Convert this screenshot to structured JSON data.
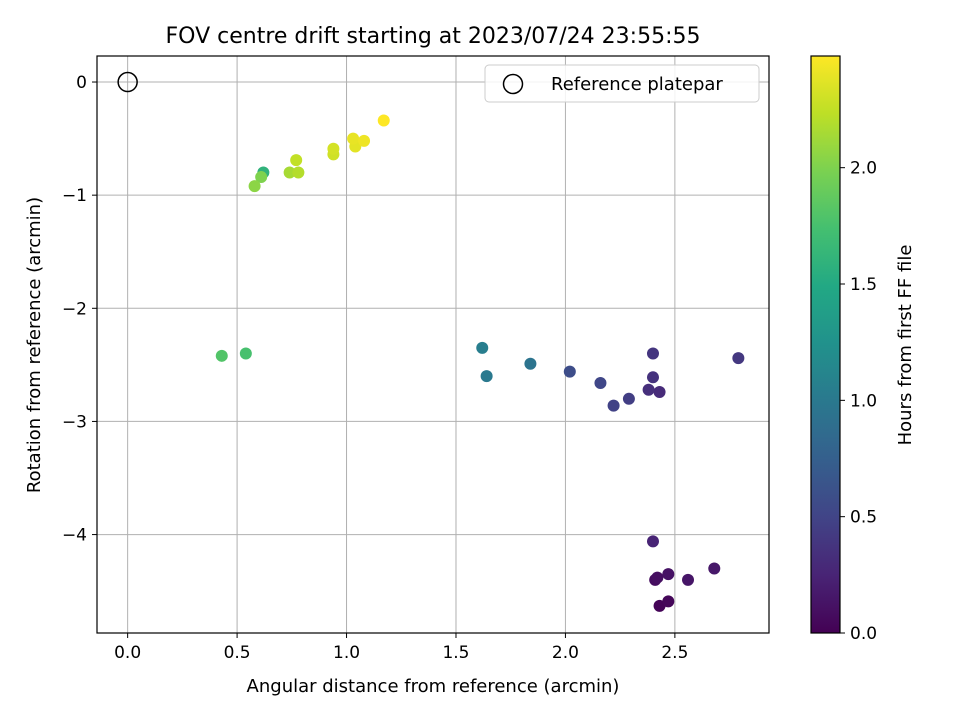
{
  "chart_data": {
    "type": "scatter",
    "title": "FOV centre drift starting at 2023/07/24 23:55:55",
    "xlabel": "Angular distance from reference (arcmin)",
    "ylabel": "Rotation from reference (arcmin)",
    "xlim": [
      -0.14,
      2.93
    ],
    "ylim": [
      -4.87,
      0.23
    ],
    "xticks": [
      0.0,
      0.5,
      1.0,
      1.5,
      2.0,
      2.5
    ],
    "xtick_labels": [
      "0.0",
      "0.5",
      "1.0",
      "1.5",
      "2.0",
      "2.5"
    ],
    "yticks": [
      0,
      -1,
      -2,
      -3,
      -4
    ],
    "ytick_labels": [
      "0",
      "−1",
      "−2",
      "−3",
      "−4"
    ],
    "grid": true,
    "colorbar": {
      "label": "Hours from first FF file",
      "colormap": "viridis",
      "range": [
        0.0,
        2.48
      ],
      "ticks": [
        0.0,
        0.5,
        1.0,
        1.5,
        2.0
      ],
      "tick_labels": [
        "0.0",
        "0.5",
        "1.0",
        "1.5",
        "2.0"
      ]
    },
    "reference": {
      "x": 0.0,
      "y": 0.0,
      "legend_label": "Reference platepar",
      "marker": "open-circle"
    },
    "legend_position": "top-right",
    "points": [
      {
        "x": 2.43,
        "y": -4.63,
        "hours": 0.02
      },
      {
        "x": 2.47,
        "y": -4.59,
        "hours": 0.04
      },
      {
        "x": 2.41,
        "y": -4.4,
        "hours": 0.08
      },
      {
        "x": 2.42,
        "y": -4.38,
        "hours": 0.1
      },
      {
        "x": 2.47,
        "y": -4.35,
        "hours": 0.12
      },
      {
        "x": 2.56,
        "y": -4.4,
        "hours": 0.14
      },
      {
        "x": 2.68,
        "y": -4.3,
        "hours": 0.16
      },
      {
        "x": 2.4,
        "y": -4.06,
        "hours": 0.25
      },
      {
        "x": 2.43,
        "y": -2.74,
        "hours": 0.3
      },
      {
        "x": 2.38,
        "y": -2.72,
        "hours": 0.33
      },
      {
        "x": 2.4,
        "y": -2.61,
        "hours": 0.36
      },
      {
        "x": 2.4,
        "y": -2.4,
        "hours": 0.38
      },
      {
        "x": 2.79,
        "y": -2.44,
        "hours": 0.4
      },
      {
        "x": 2.29,
        "y": -2.8,
        "hours": 0.45
      },
      {
        "x": 2.22,
        "y": -2.86,
        "hours": 0.48
      },
      {
        "x": 2.16,
        "y": -2.66,
        "hours": 0.52
      },
      {
        "x": 2.02,
        "y": -2.56,
        "hours": 0.58
      },
      {
        "x": 1.84,
        "y": -2.49,
        "hours": 0.95
      },
      {
        "x": 1.64,
        "y": -2.6,
        "hours": 1.0
      },
      {
        "x": 1.62,
        "y": -2.35,
        "hours": 1.05
      },
      {
        "x": 0.62,
        "y": -0.8,
        "hours": 1.6
      },
      {
        "x": 0.54,
        "y": -2.4,
        "hours": 1.75
      },
      {
        "x": 0.43,
        "y": -2.42,
        "hours": 1.8
      },
      {
        "x": 0.61,
        "y": -0.84,
        "hours": 2.0
      },
      {
        "x": 0.58,
        "y": -0.92,
        "hours": 2.05
      },
      {
        "x": 0.74,
        "y": -0.8,
        "hours": 2.15
      },
      {
        "x": 0.78,
        "y": -0.8,
        "hours": 2.2
      },
      {
        "x": 0.77,
        "y": -0.69,
        "hours": 2.25
      },
      {
        "x": 0.94,
        "y": -0.64,
        "hours": 2.3
      },
      {
        "x": 0.94,
        "y": -0.59,
        "hours": 2.32
      },
      {
        "x": 1.04,
        "y": -0.57,
        "hours": 2.38
      },
      {
        "x": 1.03,
        "y": -0.5,
        "hours": 2.4
      },
      {
        "x": 1.08,
        "y": -0.52,
        "hours": 2.42
      },
      {
        "x": 1.17,
        "y": -0.34,
        "hours": 2.48
      }
    ]
  }
}
